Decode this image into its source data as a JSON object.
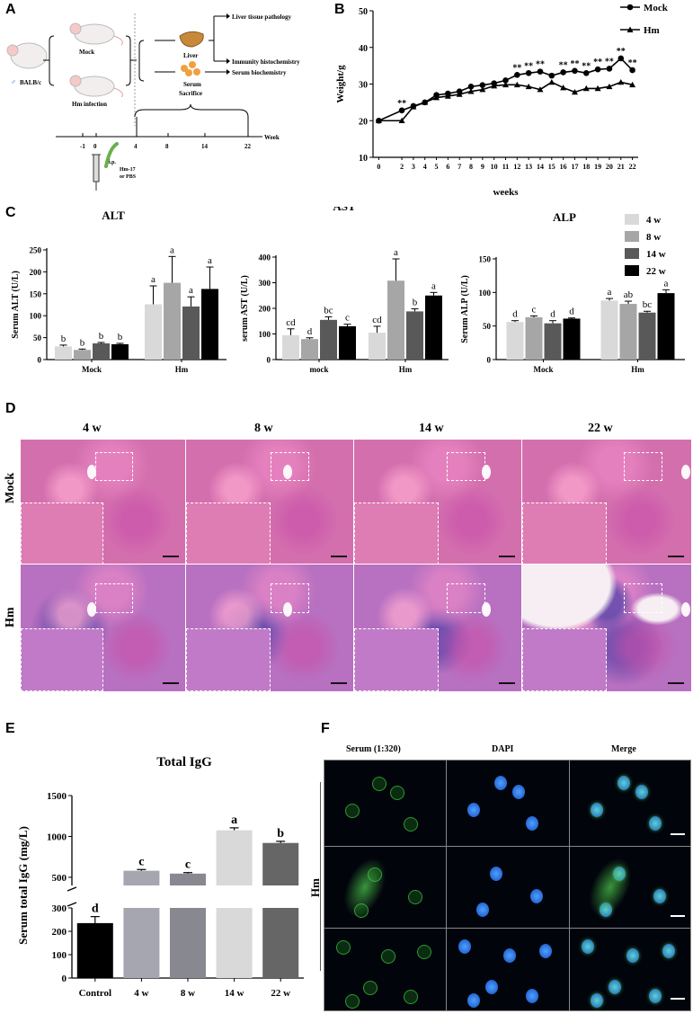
{
  "panels": {
    "A": "A",
    "B": "B",
    "C": "C",
    "D": "D",
    "E": "E",
    "F": "F"
  },
  "schematic": {
    "strain": "BALB/c",
    "groups": [
      "Mock",
      "Hm infection"
    ],
    "organs": [
      "Liver",
      "Serum"
    ],
    "outcomes": [
      "Liver tissue pathology",
      "Immunity histochemistry",
      "Serum biochemistry"
    ],
    "sacrifice": "Sacrifice",
    "week_label": "Week",
    "timeline_ticks": [
      "-1",
      "0",
      "4",
      "8",
      "14",
      "22"
    ],
    "injection_line1": "i.p.",
    "injection_line2": "Hm-17",
    "injection_line3": "or PBS"
  },
  "chart_B": {
    "type": "line",
    "ylabel": "Weight/g",
    "xlabel": "weeks",
    "ylim": [
      10,
      50
    ],
    "yticks": [
      10,
      20,
      30,
      40,
      50
    ],
    "x": [
      0,
      2,
      3,
      4,
      5,
      6,
      7,
      8,
      9,
      10,
      11,
      12,
      13,
      14,
      15,
      16,
      17,
      18,
      19,
      20,
      21,
      22
    ],
    "series": [
      {
        "name": "Mock",
        "values": [
          20,
          22.8,
          24,
          25,
          27,
          27.4,
          28,
          29.3,
          29.7,
          30.2,
          31,
          32.5,
          33,
          33.4,
          32.3,
          33.2,
          33.6,
          33,
          34,
          34.2,
          37,
          33.8
        ]
      },
      {
        "name": "Hm",
        "values": [
          20,
          20,
          23.8,
          25,
          26.3,
          26.7,
          27.2,
          28,
          28.5,
          29.5,
          29.8,
          29.8,
          29.3,
          28.5,
          30.5,
          29,
          27.8,
          28.8,
          28.8,
          29.3,
          30.5,
          29.8
        ]
      }
    ],
    "sig_marker": "**",
    "sig_x": [
      2,
      12,
      13,
      14,
      16,
      17,
      18,
      19,
      20,
      21,
      22
    ]
  },
  "legend_C": [
    "4 w",
    "8 w",
    "14 w",
    "22 w"
  ],
  "legend_C_colors": [
    "#d9d9d9",
    "#a6a6a6",
    "#595959",
    "#000000"
  ],
  "chart_ALT": {
    "type": "bar",
    "title": "ALT",
    "ylabel": "Serum ALT (U/L)",
    "ylim": [
      0,
      250
    ],
    "yticks": [
      0,
      50,
      100,
      150,
      200,
      250
    ],
    "categories": [
      "Mock",
      "Hm"
    ],
    "values": [
      [
        30,
        22,
        37,
        35
      ],
      [
        126,
        175,
        121,
        161
      ]
    ],
    "errors": [
      [
        3,
        2,
        2,
        2
      ],
      [
        42,
        60,
        22,
        50
      ]
    ],
    "letters": [
      [
        "b",
        "b",
        "b",
        "b"
      ],
      [
        "a",
        "a",
        "a",
        "a"
      ]
    ]
  },
  "chart_AST": {
    "type": "bar",
    "title": "AST",
    "ylabel": "serum AST (U/L)",
    "ylim": [
      0,
      400
    ],
    "yticks": [
      0,
      100,
      200,
      300,
      400
    ],
    "categories": [
      "mock",
      "Hm"
    ],
    "values": [
      [
        95,
        80,
        155,
        130
      ],
      [
        105,
        308,
        188,
        250
      ]
    ],
    "errors": [
      [
        25,
        5,
        12,
        8
      ],
      [
        25,
        85,
        10,
        12
      ]
    ],
    "letters": [
      [
        "cd",
        "d",
        "bc",
        "c"
      ],
      [
        "cd",
        "a",
        "b",
        "a"
      ]
    ]
  },
  "chart_ALP": {
    "type": "bar",
    "title": "ALP",
    "ylabel": "Serum ALP (U/L)",
    "ylim": [
      0,
      150
    ],
    "yticks": [
      0,
      50,
      100,
      150
    ],
    "categories": [
      "Mock",
      "Hm"
    ],
    "values": [
      [
        56,
        63,
        54,
        61
      ],
      [
        88,
        83,
        70,
        99
      ]
    ],
    "errors": [
      [
        2,
        2,
        4,
        1
      ],
      [
        3,
        4,
        2,
        5
      ]
    ],
    "letters": [
      [
        "d",
        "c",
        "d",
        "d"
      ],
      [
        "a",
        "ab",
        "bc",
        "a"
      ]
    ]
  },
  "histology": {
    "columns": [
      "4 w",
      "8 w",
      "14 w",
      "22 w"
    ],
    "rows": [
      "Mock",
      "Hm"
    ]
  },
  "chart_E": {
    "type": "bar",
    "title": "Total IgG",
    "ylabel": "Serum total IgG (mg/L)",
    "categories": [
      "Control",
      "4 w",
      "8 w",
      "14 w",
      "22 w"
    ],
    "values": [
      235,
      580,
      545,
      1075,
      920
    ],
    "errors": [
      28,
      15,
      12,
      30,
      20
    ],
    "letters": [
      "d",
      "c",
      "c",
      "a",
      "b"
    ],
    "colors": [
      "#000000",
      "#a6a6b0",
      "#888890",
      "#d9d9d9",
      "#666666"
    ],
    "yticks_low": [
      0,
      100,
      200,
      300
    ],
    "yticks_high": [
      500,
      1000,
      1500
    ]
  },
  "fluorescence": {
    "columns": [
      "Serum (1:320)",
      "DAPI",
      "Merge"
    ],
    "row_label": "Hm"
  }
}
